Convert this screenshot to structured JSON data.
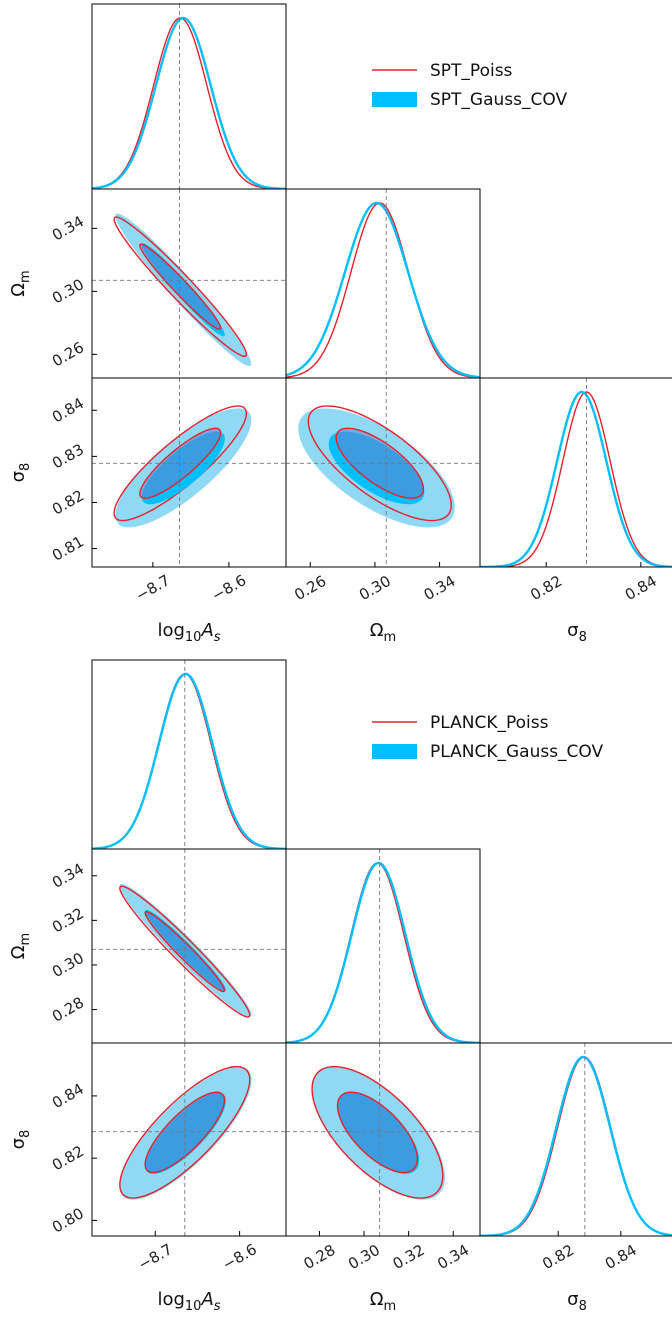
{
  "colors": {
    "poiss": "#e8202a",
    "gauss_fill": "#00bfff",
    "gauss_2sigma": "#8fd9f5",
    "poiss_1sigma_fill": "#6f7fc6",
    "frame": "#000000",
    "marker": "#777777"
  },
  "chart_data": [
    {
      "type": "corner",
      "legend": [
        "SPT_Poiss",
        "SPT_Gauss_COV"
      ],
      "legend_position": "top-right",
      "parameters": [
        "log_{10}A_s",
        "Ω_m",
        "σ_8"
      ],
      "param_labels": [
        {
          "base": "log",
          "sub": "10",
          "sym": "A",
          "symsub": "s"
        },
        {
          "base": "Ω",
          "sub": "m"
        },
        {
          "base": "σ",
          "sub": "8"
        }
      ],
      "ranges": [
        [
          -8.78,
          -8.525
        ],
        [
          0.245,
          0.365
        ],
        [
          0.806,
          0.847
        ]
      ],
      "ticks": [
        [
          -8.7,
          -8.6
        ],
        [
          0.26,
          0.3,
          0.34
        ],
        [
          0.82,
          0.84
        ]
      ],
      "y_ticks": {
        "1": [
          0.26,
          0.3,
          0.34
        ],
        "2": [
          0.81,
          0.82,
          0.83,
          0.84
        ]
      },
      "fiducial": [
        -8.665,
        0.307,
        0.8285
      ],
      "series": [
        {
          "name": "SPT_Poiss",
          "mean": [
            -8.664,
            0.303,
            0.8285
          ],
          "sigma": [
            0.035,
            0.0178,
            0.005
          ],
          "corr": [
            [
              1,
              -0.97,
              0.87
            ],
            [
              -0.97,
              1,
              -0.73
            ],
            [
              0.87,
              -0.73,
              1
            ]
          ]
        },
        {
          "name": "SPT_Gauss_COV",
          "mean": [
            -8.66,
            0.301,
            0.8275
          ],
          "sigma": [
            0.036,
            0.0195,
            0.0052
          ],
          "corr": [
            [
              1,
              -0.97,
              0.8
            ],
            [
              -0.97,
              1,
              -0.66
            ],
            [
              0.8,
              -0.66,
              1
            ]
          ]
        }
      ]
    },
    {
      "type": "corner",
      "legend": [
        "PLANCK_Poiss",
        "PLANCK_Gauss_COV"
      ],
      "legend_position": "top-right",
      "parameters": [
        "log_{10}A_s",
        "Ω_m",
        "σ_8"
      ],
      "param_labels": [
        {
          "base": "log",
          "sub": "10",
          "sym": "A",
          "symsub": "s"
        },
        {
          "base": "Ω",
          "sub": "m"
        },
        {
          "base": "σ",
          "sub": "8"
        }
      ],
      "ranges": [
        [
          -8.775,
          -8.545
        ],
        [
          0.265,
          0.352
        ],
        [
          0.795,
          0.857
        ]
      ],
      "ticks": [
        [
          -8.7,
          -8.6
        ],
        [
          0.28,
          0.3,
          0.32,
          0.34
        ],
        [
          0.82,
          0.84
        ]
      ],
      "y_ticks": {
        "1": [
          0.28,
          0.3,
          0.32,
          0.34
        ],
        "2": [
          0.8,
          0.82,
          0.84
        ]
      },
      "fiducial": [
        -8.665,
        0.307,
        0.8285
      ],
      "series": [
        {
          "name": "PLANCK_Poiss",
          "mean": [
            -8.665,
            0.306,
            0.8283
          ],
          "sigma": [
            0.031,
            0.0118,
            0.0085
          ],
          "corr": [
            [
              1,
              -0.97,
              0.8
            ],
            [
              -0.97,
              1,
              -0.66
            ],
            [
              0.8,
              -0.66,
              1
            ]
          ]
        },
        {
          "name": "PLANCK_Gauss_COV",
          "mean": [
            -8.664,
            0.3065,
            0.828
          ],
          "sigma": [
            0.0315,
            0.012,
            0.0086
          ],
          "corr": [
            [
              1,
              -0.97,
              0.8
            ],
            [
              -0.97,
              1,
              -0.66
            ],
            [
              0.8,
              -0.66,
              1
            ]
          ]
        }
      ]
    }
  ]
}
